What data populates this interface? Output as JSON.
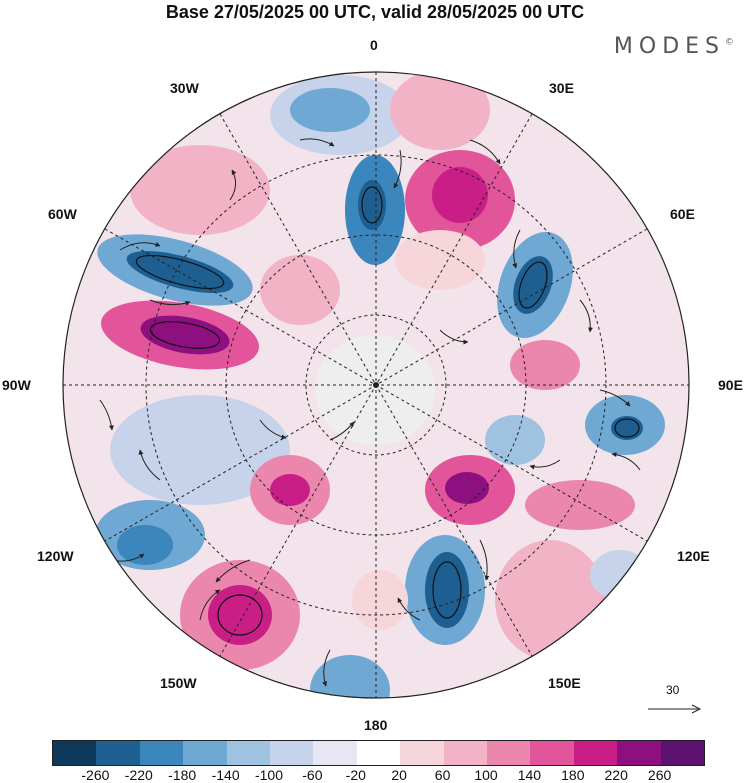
{
  "title": "Base 27/05/2025 00 UTC, valid 28/05/2025 00 UTC",
  "brand": "MODES",
  "brand_mark": "©",
  "meridian_labels": {
    "m0": "0",
    "m30w": "30W",
    "m30e": "30E",
    "m60w": "60W",
    "m60e": "60E",
    "m90w": "90W",
    "m90e": "90E",
    "m120w": "120W",
    "m120e": "120E",
    "m150w": "150W",
    "m150e": "150E",
    "m180": "180"
  },
  "vector_reference": "30",
  "colorbar": {
    "colors": [
      "#0d3a5c",
      "#1d5f91",
      "#3a86bd",
      "#6ea8d3",
      "#9fc2e0",
      "#c6d3ea",
      "#e6e7f3",
      "#ffffff",
      "#f7d6db",
      "#f3b3c6",
      "#eb87ad",
      "#e3559a",
      "#c91e86",
      "#8e0f80",
      "#5b1270"
    ],
    "ticks": [
      "-260",
      "-220",
      "-180",
      "-140",
      "-100",
      "-60",
      "-20",
      "20",
      "60",
      "100",
      "140",
      "180",
      "220",
      "260"
    ]
  },
  "map": {
    "projection": "south-polar-stereographic",
    "background": "#ffffff"
  }
}
